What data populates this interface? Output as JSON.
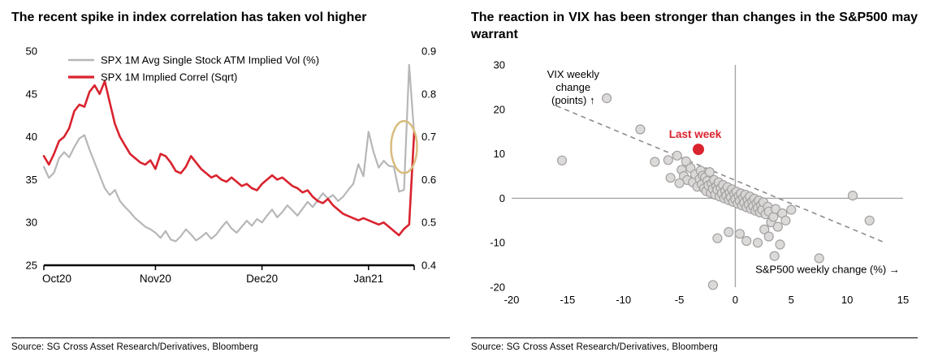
{
  "panels": {
    "left": {
      "title": "The recent spike in index correlation has taken vol higher",
      "source": "Source: SG Cross Asset Research/Derivatives, Bloomberg"
    },
    "right": {
      "title": "The reaction in VIX has been stronger than changes in the S&P500 may warrant",
      "source": "Source: SG Cross Asset Research/Derivatives, Bloomberg"
    }
  },
  "colors": {
    "gray_series": "#b7b7b7",
    "red_series": "#d9232e",
    "highlight_ellipse": "#d8bc7e",
    "scatter_fill": "#d9d6d6",
    "scatter_stroke": "#a3a0a0",
    "trendline": "#8c8c8c",
    "zero_line": "#a6a6a6",
    "axis_black": "#000000"
  },
  "chart_data": [
    {
      "type": "line",
      "title": "The recent spike in index correlation has taken vol higher",
      "legend_position": "top-left-inside",
      "x_tick_labels": [
        "Oct20",
        "Nov20",
        "Dec20",
        "Jan21"
      ],
      "x_tick_index": [
        0,
        22,
        43,
        64
      ],
      "left_axis": {
        "min": 25,
        "max": 50,
        "ticks": [
          25,
          30,
          35,
          40,
          45,
          50
        ]
      },
      "right_axis": {
        "min": 0.4,
        "max": 0.9,
        "ticks": [
          0.4,
          0.5,
          0.6,
          0.7,
          0.8,
          0.9
        ]
      },
      "series": [
        {
          "name": "SPX 1M Avg Single Stock ATM Implied Vol (%)",
          "axis": "left",
          "color": "#b7b7b7",
          "values": [
            36.5,
            35.2,
            35.8,
            37.5,
            38.2,
            37.6,
            38.8,
            39.8,
            40.2,
            38.5,
            37.0,
            35.5,
            34.0,
            33.2,
            33.8,
            32.5,
            31.8,
            31.2,
            30.5,
            30.0,
            29.5,
            29.2,
            28.8,
            28.2,
            29.0,
            28.0,
            27.8,
            28.4,
            29.2,
            28.6,
            27.9,
            28.3,
            28.8,
            28.1,
            28.6,
            29.4,
            30.1,
            29.3,
            28.8,
            29.5,
            30.2,
            29.6,
            30.4,
            30.0,
            30.8,
            31.5,
            30.6,
            31.2,
            32.0,
            31.4,
            30.8,
            31.6,
            32.4,
            31.8,
            32.6,
            33.4,
            32.8,
            33.2,
            32.5,
            33.0,
            33.8,
            34.5,
            36.8,
            35.4,
            40.6,
            38.2,
            36.4,
            37.2,
            36.6,
            36.5,
            33.6,
            33.8,
            48.4,
            40.3
          ]
        },
        {
          "name": "SPX 1M Implied Correl (Sqrt)",
          "axis": "right",
          "color": "#d9232e",
          "values": [
            0.655,
            0.635,
            0.66,
            0.69,
            0.7,
            0.72,
            0.76,
            0.775,
            0.77,
            0.805,
            0.82,
            0.8,
            0.83,
            0.78,
            0.73,
            0.7,
            0.68,
            0.66,
            0.65,
            0.64,
            0.635,
            0.645,
            0.625,
            0.66,
            0.655,
            0.64,
            0.62,
            0.615,
            0.63,
            0.655,
            0.64,
            0.625,
            0.615,
            0.605,
            0.61,
            0.6,
            0.595,
            0.605,
            0.595,
            0.585,
            0.59,
            0.58,
            0.575,
            0.59,
            0.6,
            0.61,
            0.6,
            0.605,
            0.595,
            0.585,
            0.58,
            0.57,
            0.575,
            0.56,
            0.55,
            0.545,
            0.555,
            0.54,
            0.53,
            0.52,
            0.515,
            0.51,
            0.505,
            0.51,
            0.505,
            0.5,
            0.495,
            0.5,
            0.49,
            0.48,
            0.47,
            0.485,
            0.495,
            0.71
          ]
        }
      ],
      "annotation": {
        "type": "ellipse-highlight",
        "color": "#d8bc7e",
        "x_index": 71,
        "left_value": 38.8
      }
    },
    {
      "type": "scatter",
      "title": "The reaction in VIX has been stronger than changes in the S&P500 may warrant",
      "xlim": [
        -20,
        15
      ],
      "ylim": [
        -20,
        30
      ],
      "x_ticks": [
        -20,
        -15,
        -10,
        -5,
        0,
        5,
        10,
        15
      ],
      "y_ticks": [
        -20,
        -10,
        0,
        10,
        20,
        30
      ],
      "x_axis_annotation": "S&P500 weekly change (%) →",
      "y_axis_annotation_lines": [
        "VIX weekly",
        "change",
        "(points) ↑"
      ],
      "trendline": {
        "style": "dashed",
        "from": [
          -16,
          20.8
        ],
        "to": [
          13.2,
          -9.8
        ]
      },
      "highlight_point": {
        "x": -3.3,
        "y": 11,
        "label": "Last week",
        "color": "#d9232e"
      },
      "points": [
        [
          -15.5,
          8.5
        ],
        [
          -11.5,
          22.5
        ],
        [
          -8.5,
          15.5
        ],
        [
          -7.2,
          8.2
        ],
        [
          -6.0,
          8.6
        ],
        [
          -5.8,
          4.6
        ],
        [
          -5.2,
          9.6
        ],
        [
          -4.8,
          6.4
        ],
        [
          -4.6,
          5.0
        ],
        [
          -4.4,
          8.3
        ],
        [
          -4.3,
          4.1
        ],
        [
          -4.0,
          6.8
        ],
        [
          -3.8,
          3.6
        ],
        [
          -3.6,
          5.4
        ],
        [
          -3.4,
          2.6
        ],
        [
          -3.2,
          4.3
        ],
        [
          -3.1,
          6.2
        ],
        [
          -3.0,
          3.1
        ],
        [
          -2.9,
          5.1
        ],
        [
          -2.8,
          2.2
        ],
        [
          -2.7,
          4.7
        ],
        [
          -2.6,
          1.6
        ],
        [
          -2.5,
          3.9
        ],
        [
          -2.4,
          2.9
        ],
        [
          -2.3,
          5.9
        ],
        [
          -2.2,
          1.2
        ],
        [
          -2.1,
          3.3
        ],
        [
          -2.0,
          2.1
        ],
        [
          -1.9,
          4.1
        ],
        [
          -1.8,
          0.8
        ],
        [
          -1.7,
          2.7
        ],
        [
          -1.6,
          1.9
        ],
        [
          -1.5,
          3.6
        ],
        [
          -1.4,
          0.4
        ],
        [
          -1.3,
          2.3
        ],
        [
          -1.2,
          1.1
        ],
        [
          -1.1,
          3.0
        ],
        [
          -1.0,
          0.0
        ],
        [
          -0.9,
          1.7
        ],
        [
          -0.8,
          0.6
        ],
        [
          -0.7,
          2.5
        ],
        [
          -0.6,
          -0.4
        ],
        [
          -0.5,
          1.3
        ],
        [
          -0.4,
          0.2
        ],
        [
          -0.3,
          2.0
        ],
        [
          -0.2,
          -0.8
        ],
        [
          -0.1,
          1.0
        ],
        [
          0.0,
          -0.2
        ],
        [
          0.1,
          1.5
        ],
        [
          0.2,
          -1.2
        ],
        [
          0.3,
          0.5
        ],
        [
          0.4,
          -0.6
        ],
        [
          0.5,
          1.1
        ],
        [
          0.6,
          -1.6
        ],
        [
          0.7,
          0.1
        ],
        [
          0.8,
          -1.0
        ],
        [
          0.9,
          0.8
        ],
        [
          1.0,
          -2.0
        ],
        [
          1.1,
          -0.3
        ],
        [
          1.2,
          -1.4
        ],
        [
          1.3,
          0.4
        ],
        [
          1.4,
          -2.4
        ],
        [
          1.5,
          -0.7
        ],
        [
          1.6,
          -1.8
        ],
        [
          1.7,
          -0.1
        ],
        [
          1.8,
          -2.8
        ],
        [
          1.9,
          -1.1
        ],
        [
          2.0,
          -2.2
        ],
        [
          2.1,
          -0.5
        ],
        [
          2.2,
          -3.2
        ],
        [
          2.3,
          -1.5
        ],
        [
          2.4,
          -2.6
        ],
        [
          2.5,
          -0.9
        ],
        [
          2.7,
          -3.6
        ],
        [
          2.9,
          -1.9
        ],
        [
          3.0,
          -3.0
        ],
        [
          3.2,
          -5.4
        ],
        [
          3.4,
          -4.2
        ],
        [
          3.5,
          -13.0
        ],
        [
          3.6,
          -2.4
        ],
        [
          3.8,
          -6.4
        ],
        [
          4.0,
          -10.4
        ],
        [
          4.2,
          -3.4
        ],
        [
          4.5,
          -5.0
        ],
        [
          5.0,
          -2.6
        ],
        [
          7.5,
          -13.5
        ],
        [
          10.5,
          0.6
        ],
        [
          12.0,
          -5.0
        ],
        [
          -2.0,
          -19.5
        ],
        [
          -1.6,
          -9.0
        ],
        [
          -0.6,
          -7.6
        ],
        [
          0.4,
          -8.0
        ],
        [
          1.0,
          -9.6
        ],
        [
          2.0,
          -10.0
        ],
        [
          2.6,
          -7.0
        ],
        [
          3.0,
          -8.6
        ],
        [
          -5.0,
          3.4
        ]
      ]
    }
  ]
}
